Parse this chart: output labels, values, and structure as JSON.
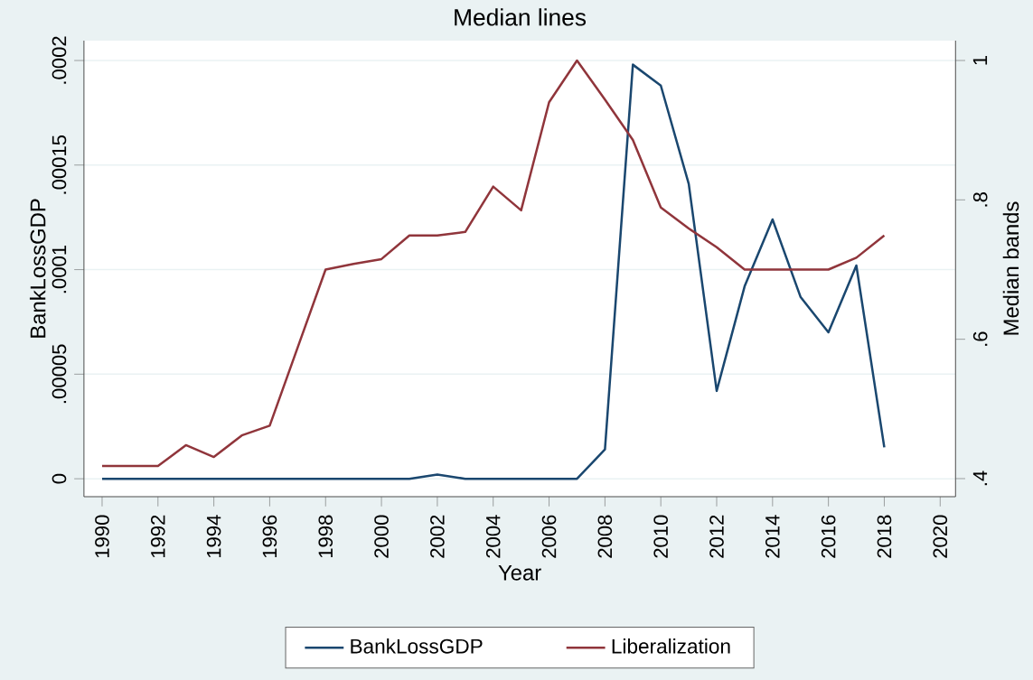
{
  "chart_data": {
    "type": "line",
    "title": "Median lines",
    "xlabel": "Year",
    "ylabel": "BankLossGDP",
    "y2label": "Median bands",
    "x": [
      1990,
      1991,
      1992,
      1993,
      1994,
      1995,
      1996,
      1997,
      1998,
      1999,
      2000,
      2001,
      2002,
      2003,
      2004,
      2005,
      2006,
      2007,
      2008,
      2009,
      2010,
      2011,
      2012,
      2013,
      2014,
      2015,
      2016,
      2017,
      2018
    ],
    "series": [
      {
        "name": "BankLossGDP",
        "color": "#1a476f",
        "values": [
          0,
          0,
          0,
          0,
          0,
          0,
          0,
          0,
          0,
          0,
          0,
          0,
          2e-06,
          0,
          0,
          0,
          0,
          0,
          1.4e-05,
          0.000198,
          0.000188,
          0.000141,
          4.2e-05,
          9.2e-05,
          0.000124,
          8.7e-05,
          7e-05,
          0.000102,
          1.5e-05
        ]
      },
      {
        "name": "Liberalization",
        "color": "#90353b",
        "axis": "y2",
        "values": [
          0.418,
          0.418,
          0.418,
          0.448,
          0.431,
          0.462,
          0.476,
          0.588,
          0.7,
          0.708,
          0.715,
          0.749,
          0.749,
          0.754,
          0.819,
          0.785,
          0.94,
          1.0,
          0.944,
          0.886,
          0.789,
          0.759,
          0.732,
          0.7,
          0.7,
          0.7,
          0.7,
          0.717,
          0.749
        ]
      }
    ],
    "xlim": [
      1989.35,
      2020.55
    ],
    "xticks": [
      1990,
      1992,
      1994,
      1996,
      1998,
      2000,
      2002,
      2004,
      2006,
      2008,
      2010,
      2012,
      2014,
      2016,
      2018,
      2020
    ],
    "ylim": [
      -8.6e-06,
      0.0002095
    ],
    "yticks": [
      {
        "value": 0,
        "label": "0"
      },
      {
        "value": 5e-05,
        "label": ".00005"
      },
      {
        "value": 0.0001,
        "label": ".0001"
      },
      {
        "value": 0.00015,
        "label": ".00015"
      },
      {
        "value": 0.0002,
        "label": ".0002"
      }
    ],
    "y2lim": [
      0.374,
      1.0285
    ],
    "y2ticks": [
      {
        "value": 0.4,
        "label": ".4"
      },
      {
        "value": 0.6,
        "label": ".6"
      },
      {
        "value": 0.8,
        "label": ".8"
      },
      1
    ],
    "grid": "y",
    "legend": "bottom"
  }
}
